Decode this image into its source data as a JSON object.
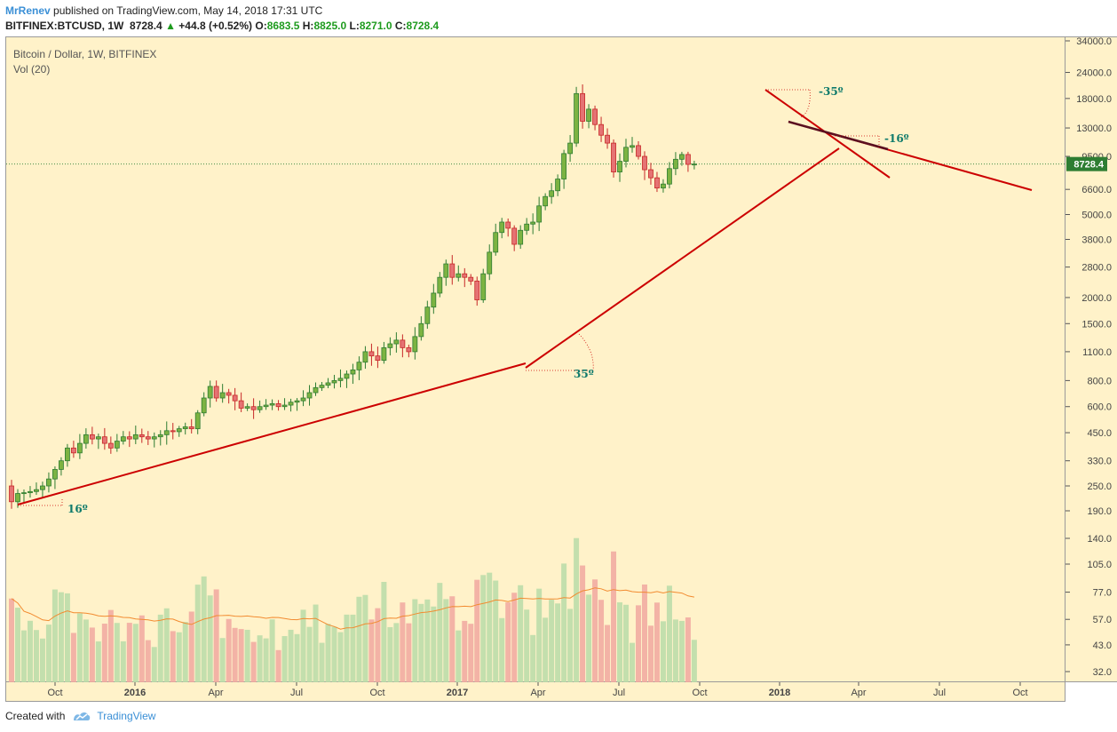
{
  "header": {
    "author": "MrRenev",
    "published": "published on TradingView.com, May 14, 2018 17:31 UTC",
    "symbol": "BITFINEX:BTCUSD, 1W",
    "last": "8728.4",
    "change": "+44.8 (+0.52%)",
    "o_label": "O:",
    "o": "8683.5",
    "h_label": "H:",
    "h": "8825.0",
    "l_label": "L:",
    "l": "8271.0",
    "c_label": "C:",
    "c": "8728.4"
  },
  "chart_title": "Bitcoin / Dollar, 1W, BITFINEX",
  "vol_title": "Vol (20)",
  "footer": {
    "created": "Created with",
    "brand": "TradingView"
  },
  "colors": {
    "background": "#fff2c9",
    "up": "#2e7d32",
    "up_fill": "#7cb342",
    "down": "#c62828",
    "down_fill": "#e57373",
    "trendline": "#cc0000",
    "angle_text": "#0e7a6b"
  },
  "annotations": [
    {
      "text": "16º"
    },
    {
      "text": "35º"
    },
    {
      "text": "-35º"
    },
    {
      "text": "-16º"
    }
  ],
  "chart_data": {
    "type": "candlestick",
    "symbol": "BITFINEX:BTCUSD",
    "interval": "1W",
    "scale": "log",
    "price_ticks": [
      "34000.0",
      "24000.0",
      "18000.0",
      "13000.0",
      "9500.0",
      "6600.0",
      "5000.0",
      "3800.0",
      "2800.0",
      "2000.0",
      "1500.0",
      "1100.0",
      "800.0",
      "600.0",
      "450.0",
      "330.0",
      "250.0",
      "190.0",
      "140.0",
      "105.0",
      "77.0",
      "57.0",
      "43.0",
      "32.0"
    ],
    "current_price_label": "8728.4",
    "time_ticks": [
      {
        "label": "Oct",
        "bold": false
      },
      {
        "label": "2016",
        "bold": true
      },
      {
        "label": "Apr",
        "bold": false
      },
      {
        "label": "Jul",
        "bold": false
      },
      {
        "label": "Oct",
        "bold": false
      },
      {
        "label": "2017",
        "bold": true
      },
      {
        "label": "Apr",
        "bold": false
      },
      {
        "label": "Jul",
        "bold": false
      },
      {
        "label": "Oct",
        "bold": false
      },
      {
        "label": "2018",
        "bold": true
      },
      {
        "label": "Apr",
        "bold": false
      },
      {
        "label": "Jul",
        "bold": false
      },
      {
        "label": "Oct",
        "bold": false
      }
    ],
    "closes": [
      210,
      230,
      232,
      235,
      240,
      250,
      270,
      300,
      330,
      380,
      360,
      400,
      440,
      420,
      430,
      400,
      380,
      410,
      430,
      420,
      440,
      430,
      420,
      430,
      440,
      460,
      455,
      470,
      480,
      470,
      560,
      660,
      750,
      660,
      700,
      680,
      640,
      590,
      600,
      580,
      600,
      610,
      620,
      600,
      610,
      630,
      640,
      660,
      700,
      740,
      760,
      780,
      800,
      820,
      860,
      900,
      980,
      1100,
      1050,
      1000,
      1150,
      1200,
      1250,
      1150,
      1100,
      1300,
      1500,
      1800,
      2100,
      2500,
      2900,
      2500,
      2600,
      2500,
      2400,
      1950,
      2600,
      3300,
      4100,
      4600,
      4300,
      3600,
      4200,
      4500,
      4600,
      5500,
      6100,
      6500,
      7400,
      9800,
      11000,
      19000,
      14000,
      16000,
      13500,
      12000,
      11000,
      8000,
      9000,
      10500,
      10700,
      9500,
      8200,
      7500,
      6700,
      7000,
      8300,
      9200,
      9700,
      8700,
      8728.4
    ],
    "volume_ma_length": 20,
    "volume_ticks": [
      "105.0",
      "77.0",
      "57.0",
      "43.0",
      "32.0"
    ]
  }
}
